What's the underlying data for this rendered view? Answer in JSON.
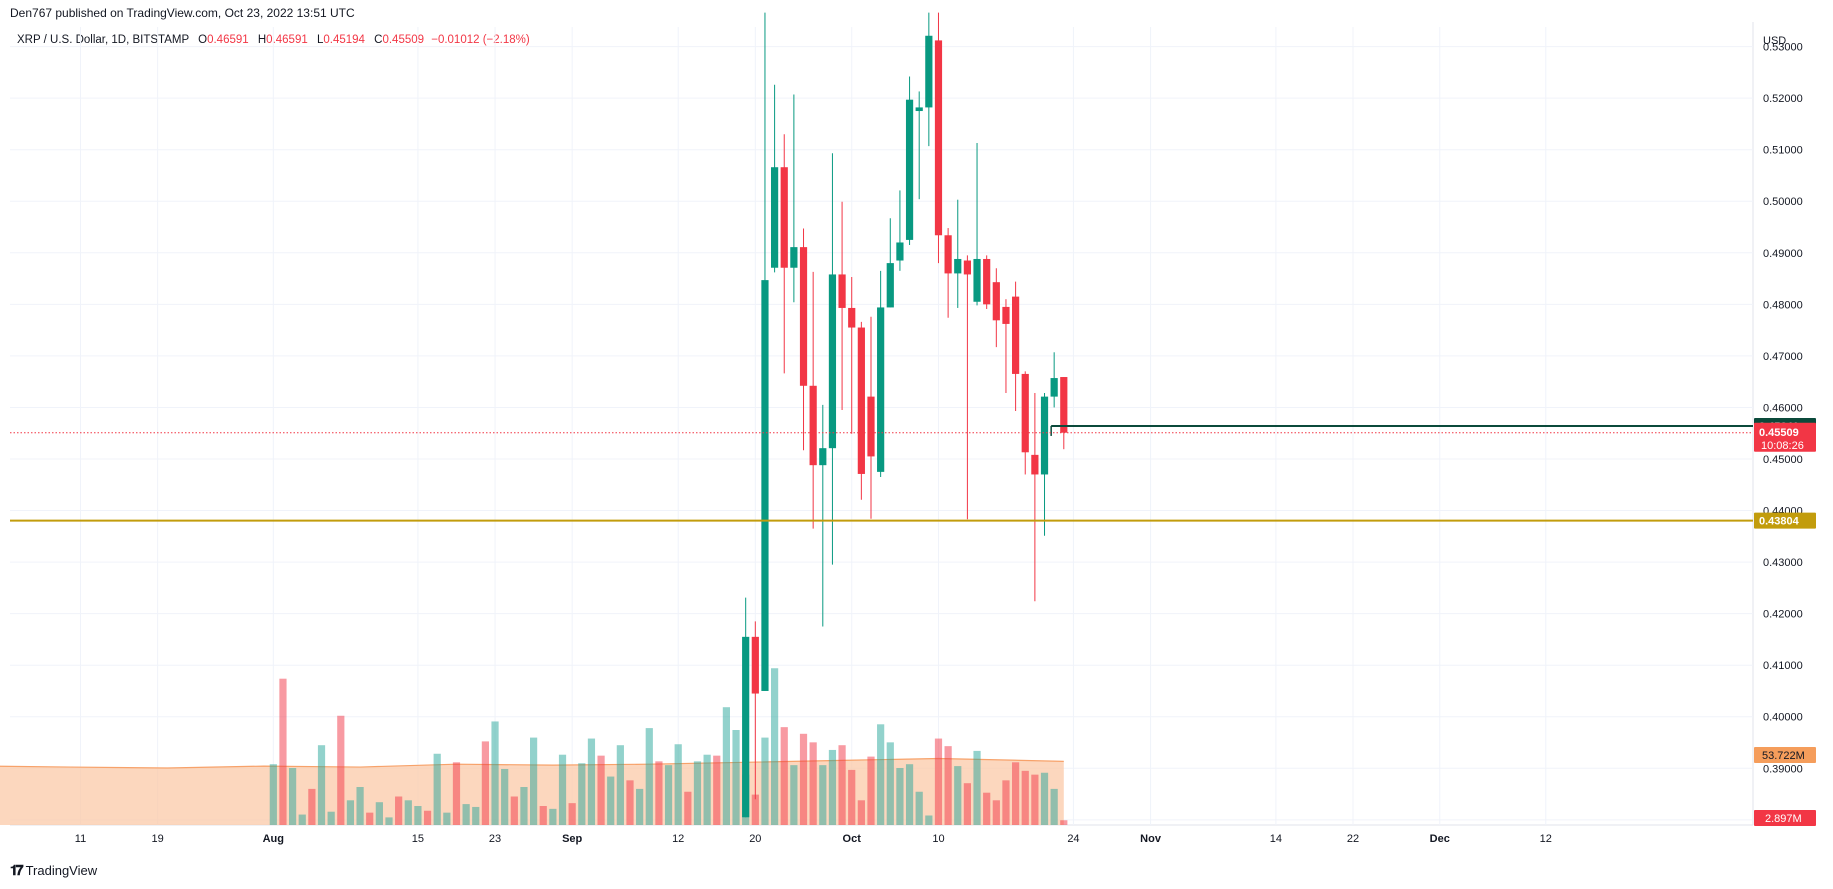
{
  "header": {
    "published": "Den767 published on TradingView.com, Oct 23, 2022 13:51 UTC",
    "symbol": "XRP / U.S. Dollar, 1D, BITSTAMP",
    "o_label": "O",
    "o_value": "0.46591",
    "h_label": "H",
    "h_value": "0.46591",
    "l_label": "L",
    "l_value": "0.45194",
    "c_label": "C",
    "c_value": "0.45509",
    "change": "−0.01012 (−2.18%)"
  },
  "footer": {
    "brand": "TradingView",
    "logo": "tradingview-logo-icon"
  },
  "colors": {
    "up": "#26a69a",
    "down": "#f23645",
    "up_body": "#089981",
    "level_gold": "#c29c0c",
    "level_dark": "#0b4a3b",
    "volume_ma_fill": "#fbc9a8",
    "ma_badge": "#f59d5b"
  },
  "chart_data": {
    "type": "candlestick",
    "currency_label": "USD",
    "y_ticks": [
      "0.53000",
      "0.52000",
      "0.51000",
      "0.50000",
      "0.49000",
      "0.48000",
      "0.47000",
      "0.46000",
      "0.45000",
      "0.44000",
      "0.43000",
      "0.42000",
      "0.41000",
      "0.40000",
      "0.39000",
      "0.38000"
    ],
    "ylim": [
      0.379,
      0.5338
    ],
    "x_ticks": [
      {
        "label": "11",
        "day": 11
      },
      {
        "label": "19",
        "day": 19
      },
      {
        "label": "Aug",
        "day": 31
      },
      {
        "label": "15",
        "day": 46
      },
      {
        "label": "23",
        "day": 54
      },
      {
        "label": "Sep",
        "day": 62
      },
      {
        "label": "12",
        "day": 73
      },
      {
        "label": "20",
        "day": 81
      },
      {
        "label": "Oct",
        "day": 91
      },
      {
        "label": "10",
        "day": 100
      },
      {
        "label": "24",
        "day": 114
      },
      {
        "label": "Nov",
        "day": 122
      },
      {
        "label": "14",
        "day": 135
      },
      {
        "label": "22",
        "day": 143
      },
      {
        "label": "Dec",
        "day": 152
      },
      {
        "label": "12",
        "day": 163
      }
    ],
    "candles": [
      {
        "day": 80,
        "o": 0.3805,
        "h": 0.4231,
        "l": 0.3805,
        "c": 0.4155
      },
      {
        "day": 81,
        "o": 0.4155,
        "h": 0.4185,
        "l": 0.384,
        "c": 0.4045
      },
      {
        "day": 82,
        "o": 0.405,
        "h": 0.5366,
        "l": 0.405,
        "c": 0.4847
      },
      {
        "day": 83,
        "o": 0.4871,
        "h": 0.5226,
        "l": 0.4862,
        "c": 0.5066
      },
      {
        "day": 84,
        "o": 0.5066,
        "h": 0.513,
        "l": 0.4666,
        "c": 0.4871
      },
      {
        "day": 85,
        "o": 0.4871,
        "h": 0.5207,
        "l": 0.4804,
        "c": 0.4911
      },
      {
        "day": 86,
        "o": 0.4911,
        "h": 0.4947,
        "l": 0.4517,
        "c": 0.4642
      },
      {
        "day": 87,
        "o": 0.4642,
        "h": 0.4863,
        "l": 0.4365,
        "c": 0.4488
      },
      {
        "day": 88,
        "o": 0.4488,
        "h": 0.4605,
        "l": 0.4175,
        "c": 0.4521
      },
      {
        "day": 89,
        "o": 0.4521,
        "h": 0.5093,
        "l": 0.4295,
        "c": 0.4858
      },
      {
        "day": 90,
        "o": 0.4858,
        "h": 0.4999,
        "l": 0.4595,
        "c": 0.4793
      },
      {
        "day": 91,
        "o": 0.4793,
        "h": 0.4853,
        "l": 0.4549,
        "c": 0.4755
      },
      {
        "day": 92,
        "o": 0.4755,
        "h": 0.4766,
        "l": 0.4421,
        "c": 0.4471
      },
      {
        "day": 93,
        "o": 0.4621,
        "h": 0.4776,
        "l": 0.4384,
        "c": 0.4505
      },
      {
        "day": 94,
        "o": 0.4475,
        "h": 0.4865,
        "l": 0.4465,
        "c": 0.4794
      },
      {
        "day": 95,
        "o": 0.4794,
        "h": 0.4967,
        "l": 0.4794,
        "c": 0.488
      },
      {
        "day": 96,
        "o": 0.4885,
        "h": 0.5021,
        "l": 0.4865,
        "c": 0.492
      },
      {
        "day": 97,
        "o": 0.4925,
        "h": 0.5242,
        "l": 0.4915,
        "c": 0.5197
      },
      {
        "day": 98,
        "o": 0.5175,
        "h": 0.5213,
        "l": 0.5004,
        "c": 0.5182
      },
      {
        "day": 99,
        "o": 0.5182,
        "h": 0.5366,
        "l": 0.5107,
        "c": 0.5321
      },
      {
        "day": 100,
        "o": 0.5312,
        "h": 0.5366,
        "l": 0.488,
        "c": 0.4934
      },
      {
        "day": 101,
        "o": 0.4934,
        "h": 0.4948,
        "l": 0.4774,
        "c": 0.486
      },
      {
        "day": 102,
        "o": 0.486,
        "h": 0.5003,
        "l": 0.4793,
        "c": 0.4888
      },
      {
        "day": 103,
        "o": 0.4885,
        "h": 0.4895,
        "l": 0.4383,
        "c": 0.4858
      },
      {
        "day": 104,
        "o": 0.4805,
        "h": 0.5113,
        "l": 0.4798,
        "c": 0.4888
      },
      {
        "day": 105,
        "o": 0.4888,
        "h": 0.4895,
        "l": 0.4791,
        "c": 0.48
      },
      {
        "day": 106,
        "o": 0.4843,
        "h": 0.487,
        "l": 0.4717,
        "c": 0.4769
      },
      {
        "day": 107,
        "o": 0.4795,
        "h": 0.481,
        "l": 0.4628,
        "c": 0.4762
      },
      {
        "day": 108,
        "o": 0.4815,
        "h": 0.4844,
        "l": 0.4593,
        "c": 0.4665
      },
      {
        "day": 109,
        "o": 0.4665,
        "h": 0.467,
        "l": 0.447,
        "c": 0.4513
      },
      {
        "day": 110,
        "o": 0.4508,
        "h": 0.4628,
        "l": 0.4224,
        "c": 0.447
      },
      {
        "day": 111,
        "o": 0.447,
        "h": 0.4628,
        "l": 0.4351,
        "c": 0.4621
      },
      {
        "day": 112,
        "o": 0.4621,
        "h": 0.4707,
        "l": 0.46,
        "c": 0.4657
      },
      {
        "day": 113,
        "o": 0.4659,
        "h": 0.4659,
        "l": 0.4519,
        "c": 0.4551
      }
    ],
    "volume": {
      "label_ma": "53.722M",
      "label_last": "2.897M",
      "bars": [
        {
          "day": 31,
          "v": 64
        },
        {
          "day": 32,
          "v": 154
        },
        {
          "day": 33,
          "v": 60
        },
        {
          "day": 34,
          "v": 11
        },
        {
          "day": 35,
          "v": 38
        },
        {
          "day": 36,
          "v": 84
        },
        {
          "day": 37,
          "v": 14
        },
        {
          "day": 38,
          "v": 115
        },
        {
          "day": 39,
          "v": 26
        },
        {
          "day": 40,
          "v": 40
        },
        {
          "day": 41,
          "v": 13
        },
        {
          "day": 42,
          "v": 24
        },
        {
          "day": 43,
          "v": 8
        },
        {
          "day": 44,
          "v": 30
        },
        {
          "day": 45,
          "v": 26
        },
        {
          "day": 46,
          "v": 20
        },
        {
          "day": 47,
          "v": 15
        },
        {
          "day": 48,
          "v": 75
        },
        {
          "day": 49,
          "v": 13
        },
        {
          "day": 50,
          "v": 66
        },
        {
          "day": 51,
          "v": 22
        },
        {
          "day": 52,
          "v": 19
        },
        {
          "day": 53,
          "v": 88
        },
        {
          "day": 54,
          "v": 109
        },
        {
          "day": 55,
          "v": 59
        },
        {
          "day": 56,
          "v": 30
        },
        {
          "day": 57,
          "v": 40
        },
        {
          "day": 58,
          "v": 92
        },
        {
          "day": 59,
          "v": 20
        },
        {
          "day": 60,
          "v": 17
        },
        {
          "day": 61,
          "v": 74
        },
        {
          "day": 62,
          "v": 23
        },
        {
          "day": 63,
          "v": 65
        },
        {
          "day": 64,
          "v": 91
        },
        {
          "day": 65,
          "v": 73
        },
        {
          "day": 66,
          "v": 51
        },
        {
          "day": 67,
          "v": 84
        },
        {
          "day": 68,
          "v": 47
        },
        {
          "day": 69,
          "v": 38
        },
        {
          "day": 70,
          "v": 102
        },
        {
          "day": 71,
          "v": 67
        },
        {
          "day": 72,
          "v": 63
        },
        {
          "day": 73,
          "v": 85
        },
        {
          "day": 74,
          "v": 35
        },
        {
          "day": 75,
          "v": 67
        },
        {
          "day": 76,
          "v": 74
        },
        {
          "day": 77,
          "v": 73
        },
        {
          "day": 78,
          "v": 124
        },
        {
          "day": 79,
          "v": 100
        },
        {
          "day": 80,
          "v": 53
        },
        {
          "day": 81,
          "v": 32
        },
        {
          "day": 82,
          "v": 92
        },
        {
          "day": 83,
          "v": 165
        },
        {
          "day": 84,
          "v": 103
        },
        {
          "day": 85,
          "v": 63
        },
        {
          "day": 86,
          "v": 96
        },
        {
          "day": 87,
          "v": 87
        },
        {
          "day": 88,
          "v": 63
        },
        {
          "day": 89,
          "v": 79
        },
        {
          "day": 90,
          "v": 84
        },
        {
          "day": 91,
          "v": 58
        },
        {
          "day": 92,
          "v": 26
        },
        {
          "day": 93,
          "v": 72
        },
        {
          "day": 94,
          "v": 106
        },
        {
          "day": 95,
          "v": 87
        },
        {
          "day": 96,
          "v": 60
        },
        {
          "day": 97,
          "v": 64
        },
        {
          "day": 98,
          "v": 35
        },
        {
          "day": 99,
          "v": 10
        },
        {
          "day": 100,
          "v": 91
        },
        {
          "day": 101,
          "v": 83
        },
        {
          "day": 102,
          "v": 62
        },
        {
          "day": 103,
          "v": 44
        },
        {
          "day": 104,
          "v": 78
        },
        {
          "day": 105,
          "v": 34
        },
        {
          "day": 106,
          "v": 26
        },
        {
          "day": 107,
          "v": 47
        },
        {
          "day": 108,
          "v": 66
        },
        {
          "day": 109,
          "v": 57
        },
        {
          "day": 110,
          "v": 53
        },
        {
          "day": 111,
          "v": 55
        },
        {
          "day": 112,
          "v": 38
        },
        {
          "day": 113,
          "v": 5
        }
      ],
      "ma": [
        {
          "day": 1,
          "v": 62
        },
        {
          "day": 10,
          "v": 61
        },
        {
          "day": 20,
          "v": 60
        },
        {
          "day": 30,
          "v": 62
        },
        {
          "day": 40,
          "v": 61
        },
        {
          "day": 50,
          "v": 64
        },
        {
          "day": 60,
          "v": 63
        },
        {
          "day": 70,
          "v": 64
        },
        {
          "day": 80,
          "v": 66
        },
        {
          "day": 90,
          "v": 68
        },
        {
          "day": 100,
          "v": 70
        },
        {
          "day": 113,
          "v": 67
        }
      ]
    },
    "levels": [
      {
        "name": "support",
        "value": 0.43804,
        "label": "0.43804",
        "color": "#c29c0c"
      },
      {
        "name": "resistance",
        "value": 0.45641,
        "label": "0.45641",
        "color": "#0b4a3b",
        "from_day": 112
      }
    ],
    "last_price": {
      "value": 0.45509,
      "label": "0.45509",
      "countdown": "10:08:26"
    }
  }
}
